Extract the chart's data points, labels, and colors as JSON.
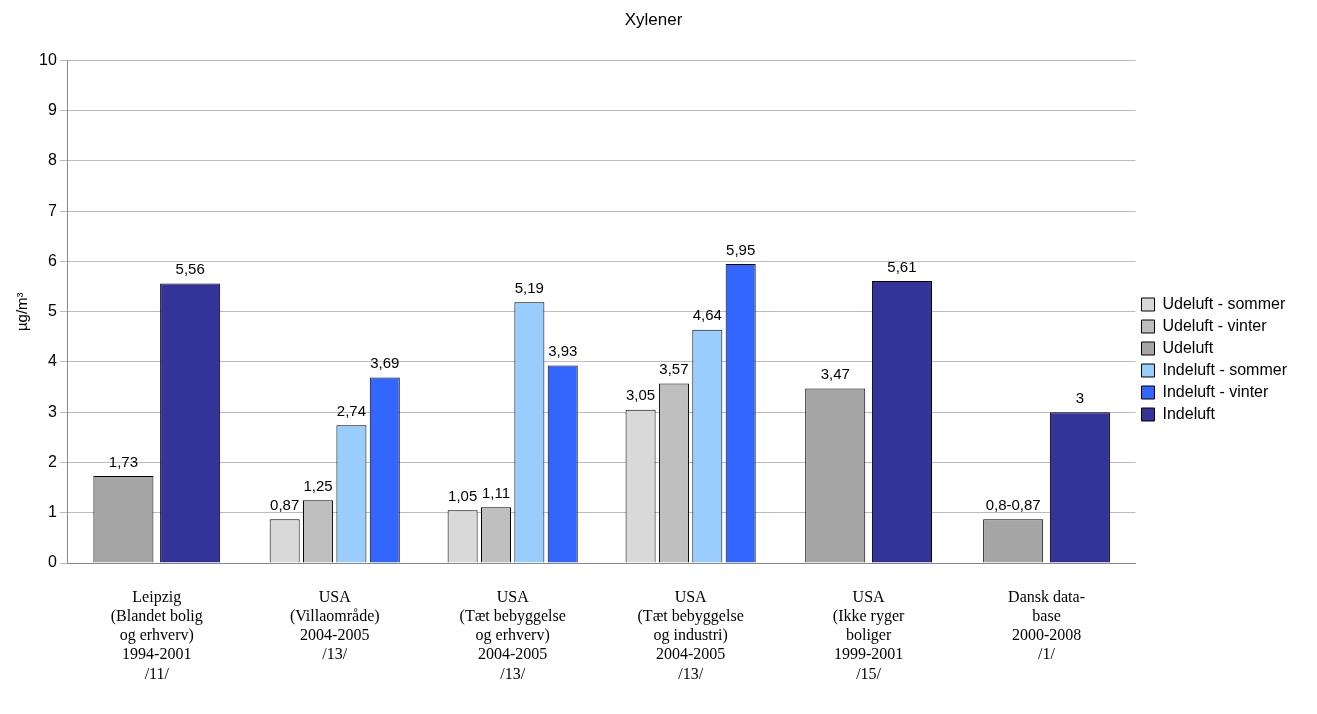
{
  "chart_data": {
    "type": "bar",
    "title": "Xylener",
    "ylabel": "µg/m³",
    "categories": [
      "Leipzig\n(Blandet bolig\nog erhverv)\n1994-2001\n/11/",
      "USA\n(Villaområde)\n2004-2005\n/13/",
      "USA\n(Tæt bebyggelse\nog erhverv)\n2004-2005\n/13/",
      "USA\n(Tæt bebyggelse\nog industri)\n2004-2005\n/13/",
      "USA\n(Ikke ryger\nboliger\n1999-2001\n/15/",
      "Dansk data-\nbase\n2000-2008\n/1/"
    ],
    "series": [
      {
        "name": "Udeluft - sommer",
        "color": "#d9d9d9",
        "values": [
          null,
          0.87,
          1.05,
          3.05,
          null,
          null
        ],
        "value_labels": [
          null,
          "0,87",
          "1,05",
          "3,05",
          null,
          null
        ]
      },
      {
        "name": "Udeluft - vinter",
        "color": "#bfbfbf",
        "values": [
          null,
          1.25,
          1.11,
          3.57,
          null,
          null
        ],
        "value_labels": [
          null,
          "1,25",
          "1,11",
          "3,57",
          null,
          null
        ]
      },
      {
        "name": "Udeluft",
        "color": "#a6a6a6",
        "values": [
          1.73,
          null,
          null,
          null,
          3.47,
          0.87
        ],
        "value_labels": [
          "1,73",
          null,
          null,
          null,
          "3,47",
          "0,8-0,87"
        ]
      },
      {
        "name": "Indeluft - sommer",
        "color": "#99ccff",
        "values": [
          null,
          2.74,
          5.19,
          4.64,
          null,
          null
        ],
        "value_labels": [
          null,
          "2,74",
          "5,19",
          "4,64",
          null,
          null
        ]
      },
      {
        "name": "Indeluft - vinter",
        "color": "#3366ff",
        "values": [
          null,
          3.69,
          3.93,
          5.95,
          null,
          null
        ],
        "value_labels": [
          null,
          "3,69",
          "3,93",
          "5,95",
          null,
          null
        ]
      },
      {
        "name": "Indeluft",
        "color": "#333399",
        "values": [
          5.56,
          null,
          null,
          null,
          5.61,
          3
        ],
        "value_labels": [
          "5,56",
          null,
          null,
          null,
          "5,61",
          "3"
        ]
      }
    ],
    "ylim": [
      0,
      10
    ],
    "yticks": [
      0,
      1,
      2,
      3,
      4,
      5,
      6,
      7,
      8,
      9,
      10
    ],
    "grid": "y",
    "legend": "right"
  }
}
